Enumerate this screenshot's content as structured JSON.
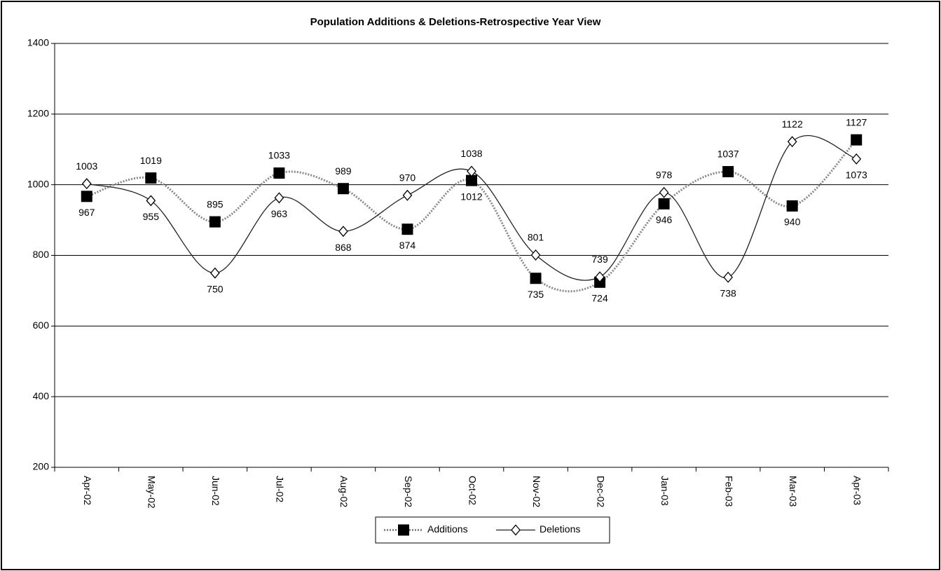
{
  "chart_data": {
    "type": "line",
    "title": "Population Additions & Deletions-Retrospective Year View",
    "categories": [
      "Apr-02",
      "May-02",
      "Jun-02",
      "Jul-02",
      "Aug-02",
      "Sep-02",
      "Oct-02",
      "Nov-02",
      "Dec-02",
      "Jan-03",
      "Feb-03",
      "Mar-03",
      "Apr-03"
    ],
    "series": [
      {
        "name": "Additions",
        "color": "#000000",
        "marker": "square",
        "values": [
          967,
          1019,
          895,
          1033,
          989,
          874,
          1012,
          735,
          724,
          946,
          1037,
          940,
          1127
        ]
      },
      {
        "name": "Deletions",
        "color": "#000000",
        "marker": "diamond",
        "values": [
          1003,
          955,
          750,
          963,
          868,
          970,
          1038,
          801,
          739,
          978,
          738,
          1122,
          1073
        ]
      }
    ],
    "ylim": [
      200,
      1400
    ],
    "yticks": [
      200,
      400,
      600,
      800,
      1000,
      1200,
      1400
    ],
    "grid": true,
    "legend": "bottom"
  }
}
